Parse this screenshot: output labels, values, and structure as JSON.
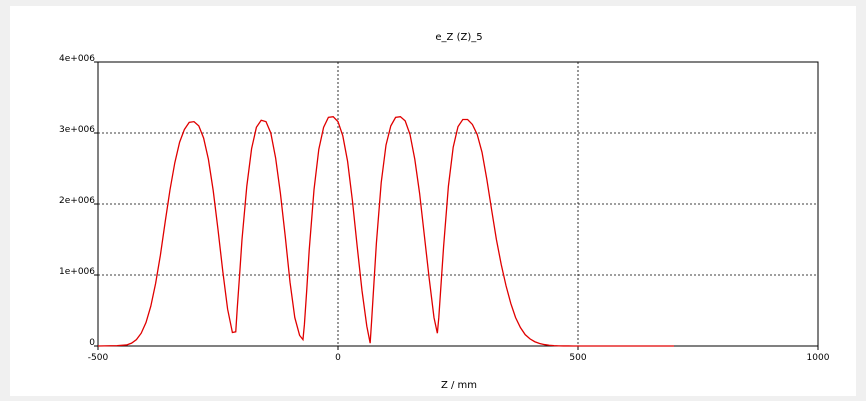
{
  "chart_data": {
    "type": "line",
    "title": "e_Z (Z)_5",
    "xlabel": "Z / mm",
    "ylabel": "",
    "xlim": [
      -500,
      1000
    ],
    "ylim": [
      0,
      4000000
    ],
    "grid": true,
    "x_ticks": [
      -500,
      0,
      500,
      1000
    ],
    "x_tick_labels": [
      "-500",
      "0",
      "500",
      "1000"
    ],
    "y_ticks": [
      0,
      1000000,
      2000000,
      3000000,
      4000000
    ],
    "y_tick_labels": [
      "0",
      "1e+006",
      "2e+006",
      "3e+006",
      "4e+006"
    ],
    "colors": {
      "line": "#e00000",
      "grid": "#000000",
      "frame": "#000000"
    },
    "series": [
      {
        "x": [
          -500,
          -460,
          -440,
          -430,
          -420,
          -410,
          -400,
          -390,
          -380,
          -370,
          -360,
          -350,
          -340,
          -330,
          -320,
          -310,
          -300,
          -290,
          -280,
          -270,
          -260,
          -250,
          -240,
          -230,
          -220,
          -213,
          -210,
          -205,
          -200,
          -190,
          -180,
          -170,
          -160,
          -150,
          -140,
          -130,
          -120,
          -110,
          -100,
          -90,
          -80,
          -73,
          -70,
          -65,
          -60,
          -50,
          -40,
          -30,
          -20,
          -10,
          0,
          10,
          20,
          30,
          40,
          50,
          60,
          67,
          70,
          75,
          80,
          90,
          100,
          110,
          120,
          130,
          140,
          150,
          160,
          170,
          180,
          190,
          200,
          207,
          210,
          215,
          220,
          230,
          240,
          250,
          260,
          270,
          280,
          290,
          300,
          310,
          320,
          330,
          340,
          350,
          360,
          370,
          380,
          390,
          400,
          410,
          420,
          430,
          440,
          450,
          460,
          470,
          480,
          490,
          500,
          510,
          520,
          540,
          560,
          600,
          650,
          700
        ],
        "y": [
          0,
          5000,
          15000,
          40000,
          90000,
          180000,
          330000,
          560000,
          880000,
          1280000,
          1750000,
          2200000,
          2580000,
          2870000,
          3050000,
          3150000,
          3160000,
          3100000,
          2930000,
          2630000,
          2190000,
          1640000,
          1050000,
          520000,
          190000,
          200000,
          520000,
          1000000,
          1500000,
          2250000,
          2780000,
          3080000,
          3180000,
          3160000,
          3000000,
          2650000,
          2150000,
          1550000,
          900000,
          400000,
          150000,
          90000,
          300000,
          800000,
          1350000,
          2200000,
          2770000,
          3080000,
          3220000,
          3230000,
          3160000,
          2960000,
          2600000,
          2050000,
          1400000,
          780000,
          280000,
          40000,
          350000,
          900000,
          1450000,
          2300000,
          2830000,
          3100000,
          3220000,
          3230000,
          3170000,
          2980000,
          2630000,
          2150000,
          1550000,
          950000,
          400000,
          180000,
          400000,
          900000,
          1400000,
          2250000,
          2800000,
          3090000,
          3190000,
          3190000,
          3120000,
          2980000,
          2730000,
          2350000,
          1920000,
          1500000,
          1150000,
          850000,
          600000,
          400000,
          260000,
          160000,
          100000,
          60000,
          35000,
          20000,
          10000,
          5000,
          2000,
          1000,
          500,
          200,
          100,
          50,
          0,
          0,
          0,
          0,
          0,
          0
        ]
      }
    ]
  }
}
